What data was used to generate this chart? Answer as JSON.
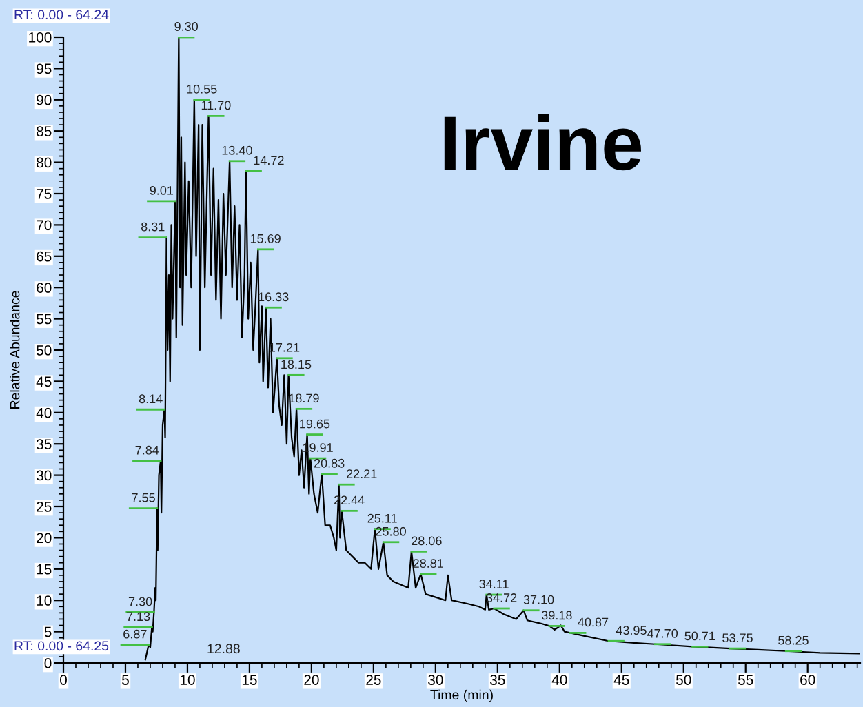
{
  "chart_data": {
    "type": "line",
    "title": "Irvine",
    "xlabel": "Time (min)",
    "ylabel": "Relative Abundance",
    "annotations": [
      "RT: 0.00 - 64.24",
      {
        "text": "6.87",
        "x": 6.87,
        "y": 2.9
      },
      {
        "text": "7.13",
        "x": 7.13,
        "y": 5.7
      },
      {
        "text": "7.30",
        "x": 7.3,
        "y": 8.1
      },
      {
        "text": "7.55",
        "x": 7.55,
        "y": 24.7
      },
      {
        "text": "7.84",
        "x": 7.84,
        "y": 32.3
      },
      {
        "text": "8.14",
        "x": 8.14,
        "y": 40.5
      },
      {
        "text": "8.31",
        "x": 8.31,
        "y": 68
      },
      {
        "text": "9.01",
        "x": 9.01,
        "y": 73.8
      },
      {
        "text": "9.30",
        "x": 9.3,
        "y": 100
      },
      {
        "text": "10.55",
        "x": 10.55,
        "y": 90
      },
      {
        "text": "11.70",
        "x": 11.7,
        "y": 87.4
      },
      {
        "text": "13.40",
        "x": 13.4,
        "y": 80.2
      },
      {
        "text": "14.72",
        "x": 14.72,
        "y": 78.6
      },
      {
        "text": "15.69",
        "x": 15.69,
        "y": 66.1
      },
      {
        "text": "16.33",
        "x": 16.33,
        "y": 56.8
      },
      {
        "text": "17.21",
        "x": 17.21,
        "y": 48.7
      },
      {
        "text": "18.15",
        "x": 18.15,
        "y": 46
      },
      {
        "text": "18.79",
        "x": 18.79,
        "y": 40.6
      },
      {
        "text": "19.65",
        "x": 19.65,
        "y": 36.5
      },
      {
        "text": "19.91",
        "x": 19.91,
        "y": 32.7
      },
      {
        "text": "20.83",
        "x": 20.83,
        "y": 30.2
      },
      {
        "text": "22.21",
        "x": 22.21,
        "y": 28.5
      },
      {
        "text": "22.44",
        "x": 22.44,
        "y": 24.3
      },
      {
        "text": "25.11",
        "x": 25.11,
        "y": 21.4
      },
      {
        "text": "25.80",
        "x": 25.8,
        "y": 19.3
      },
      {
        "text": "28.06",
        "x": 28.06,
        "y": 17.8
      },
      {
        "text": "28.81",
        "x": 28.81,
        "y": 14.2
      },
      {
        "text": "34.11",
        "x": 34.11,
        "y": 10.9
      },
      {
        "text": "34.72",
        "x": 34.72,
        "y": 8.7
      },
      {
        "text": "37.10",
        "x": 37.1,
        "y": 8.4
      },
      {
        "text": "39.18",
        "x": 39.18,
        "y": 5.9
      },
      {
        "text": "40.87",
        "x": 40.87,
        "y": 4.8
      },
      {
        "text": "43.95",
        "x": 43.95,
        "y": 3.5
      },
      {
        "text": "47.70",
        "x": 47.7,
        "y": 3
      },
      {
        "text": "50.71",
        "x": 50.71,
        "y": 2.6
      },
      {
        "text": "53.75",
        "x": 53.75,
        "y": 2.3
      },
      {
        "text": "58.25",
        "x": 58.25,
        "y": 1.9
      },
      "RT: 0.00 - 64.25",
      "12.88"
    ],
    "xlim": [
      0,
      64.24
    ],
    "ylim": [
      0,
      100
    ],
    "xticks": [
      0,
      5,
      10,
      15,
      20,
      25,
      30,
      35,
      40,
      45,
      50,
      55,
      60
    ],
    "yticks": [
      0,
      5,
      10,
      15,
      20,
      25,
      30,
      35,
      40,
      45,
      50,
      55,
      60,
      65,
      70,
      75,
      80,
      85,
      90,
      95,
      100
    ],
    "grid": false,
    "series": [
      {
        "color": "#000000",
        "x": [
          6.6,
          6.87,
          7.0,
          7.13,
          7.2,
          7.3,
          7.4,
          7.45,
          7.55,
          7.6,
          7.7,
          7.84,
          7.9,
          8.0,
          8.14,
          8.2,
          8.31,
          8.4,
          8.5,
          8.6,
          8.7,
          8.8,
          9.01,
          9.1,
          9.2,
          9.3,
          9.4,
          9.5,
          9.6,
          9.8,
          9.9,
          10.1,
          10.3,
          10.55,
          10.7,
          10.9,
          11.0,
          11.2,
          11.4,
          11.7,
          11.9,
          12.1,
          12.3,
          12.5,
          12.7,
          12.9,
          13.1,
          13.4,
          13.6,
          13.8,
          14.0,
          14.2,
          14.4,
          14.6,
          14.72,
          14.9,
          15.1,
          15.3,
          15.5,
          15.69,
          15.8,
          16.0,
          16.1,
          16.33,
          16.5,
          16.7,
          16.9,
          17.21,
          17.4,
          17.6,
          17.8,
          18.0,
          18.15,
          18.4,
          18.6,
          18.79,
          19.0,
          19.2,
          19.4,
          19.65,
          19.8,
          19.91,
          20.2,
          20.5,
          20.83,
          21.1,
          21.5,
          21.8,
          22.0,
          22.21,
          22.3,
          22.44,
          22.8,
          23.3,
          23.8,
          24.3,
          24.8,
          25.11,
          25.4,
          25.8,
          26.1,
          26.6,
          27.2,
          27.8,
          28.06,
          28.4,
          28.81,
          29.2,
          30.0,
          30.8,
          31.0,
          31.3,
          32.5,
          33.5,
          34.0,
          34.11,
          34.3,
          34.72,
          35.5,
          36.5,
          37.1,
          37.4,
          38.5,
          39.18,
          39.6,
          40.1,
          40.4,
          40.87,
          42.0,
          43.95,
          46.0,
          47.7,
          50.71,
          53.75,
          56.0,
          58.25,
          61.0,
          64.24
        ],
        "values": [
          0.5,
          2.9,
          2.5,
          5.7,
          5,
          8.1,
          12,
          10,
          24.7,
          18,
          30,
          32.3,
          24,
          38,
          40.5,
          36,
          68,
          50,
          62,
          45,
          70,
          55,
          73.8,
          52,
          76,
          100,
          60,
          84,
          54,
          80,
          62,
          77,
          60,
          90,
          65,
          86,
          50,
          86,
          60,
          87.4,
          62,
          79,
          58,
          74,
          55,
          75,
          62,
          80.2,
          60,
          73,
          58,
          70,
          52,
          62,
          78.6,
          55,
          64,
          50,
          58,
          66.1,
          48,
          57,
          45,
          56.8,
          44,
          55,
          40,
          48.7,
          41,
          38,
          46,
          35,
          46,
          36,
          33,
          40.6,
          30,
          34,
          28,
          36.5,
          27,
          32.7,
          27,
          24,
          30.2,
          22,
          22,
          20,
          18,
          28.5,
          20,
          24.3,
          18,
          17,
          16,
          16,
          15,
          21.4,
          15,
          19.3,
          14,
          13,
          12.5,
          12,
          17.8,
          12,
          14.2,
          11,
          10.5,
          10,
          14,
          10,
          9.5,
          9,
          8.5,
          10.9,
          8.5,
          8.7,
          7.8,
          7,
          8.4,
          6.8,
          6.3,
          5.9,
          5.3,
          6,
          5,
          4.8,
          4.3,
          3.5,
          3.2,
          3,
          2.6,
          2.3,
          2.1,
          1.9,
          1.6,
          1.5
        ]
      }
    ]
  }
}
